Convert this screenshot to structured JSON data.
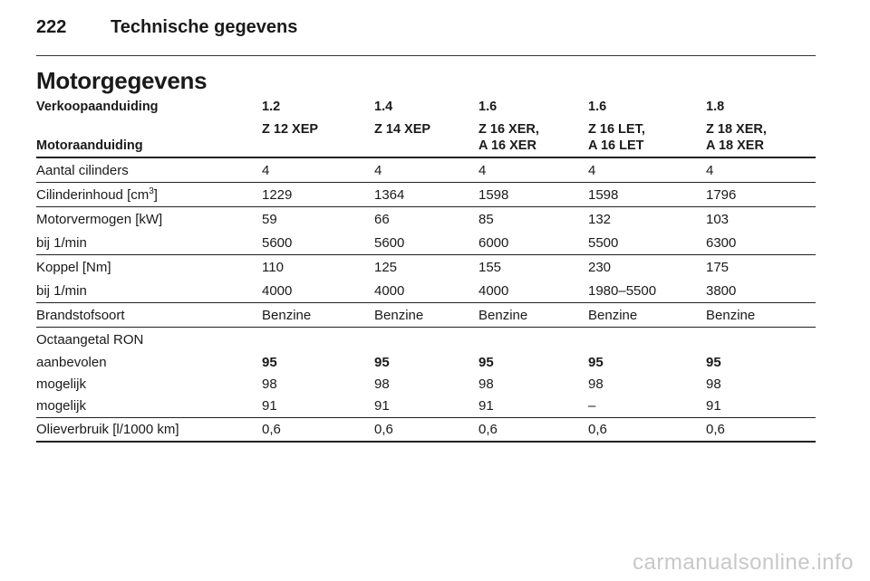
{
  "header": {
    "page_number": "222",
    "title": "Technische gegevens"
  },
  "section": {
    "title": "Motorgegevens"
  },
  "table": {
    "sales_designation_label": "Verkoopaanduiding",
    "engine_designation_label": "Motoraanduiding",
    "columns": [
      {
        "sales": "1.2",
        "engine_line1": "Z 12 XEP",
        "engine_line2": ""
      },
      {
        "sales": "1.4",
        "engine_line1": "Z 14 XEP",
        "engine_line2": ""
      },
      {
        "sales": "1.6",
        "engine_line1": "Z 16 XER,",
        "engine_line2": "A 16 XER"
      },
      {
        "sales": "1.6",
        "engine_line1": "Z 16 LET,",
        "engine_line2": "A 16 LET"
      },
      {
        "sales": "1.8",
        "engine_line1": "Z 18 XER,",
        "engine_line2": "A 18 XER"
      }
    ],
    "rows": [
      {
        "label": "Aantal cilinders",
        "values": [
          "4",
          "4",
          "4",
          "4",
          "4"
        ]
      },
      {
        "label_pre": "Cilinderinhoud [cm",
        "label_sup": "3",
        "label_post": "]",
        "values": [
          "1229",
          "1364",
          "1598",
          "1598",
          "1796"
        ]
      },
      {
        "label": "Motorvermogen [kW]",
        "values": [
          "59",
          "66",
          "85",
          "132",
          "103"
        ]
      },
      {
        "label": "bij 1/min",
        "values": [
          "5600",
          "5600",
          "6000",
          "5500",
          "6300"
        ]
      },
      {
        "label": "Koppel [Nm]",
        "values": [
          "110",
          "125",
          "155",
          "230",
          "175"
        ]
      },
      {
        "label": "bij 1/min",
        "values": [
          "4000",
          "4000",
          "4000",
          "1980–5500",
          "3800"
        ]
      },
      {
        "label": "Brandstofsoort",
        "values": [
          "Benzine",
          "Benzine",
          "Benzine",
          "Benzine",
          "Benzine"
        ]
      },
      {
        "label": "Octaangetal RON"
      },
      {
        "label": "aanbevolen",
        "values": [
          "95",
          "95",
          "95",
          "95",
          "95"
        ]
      },
      {
        "label": "mogelijk",
        "values": [
          "98",
          "98",
          "98",
          "98",
          "98"
        ]
      },
      {
        "label": "mogelijk",
        "values": [
          "91",
          "91",
          "91",
          "–",
          "91"
        ]
      },
      {
        "label": "Olieverbruik [l/1000 km]",
        "values": [
          "0,6",
          "0,6",
          "0,6",
          "0,6",
          "0,6"
        ]
      }
    ]
  },
  "watermark": "carmanualsonline.info"
}
